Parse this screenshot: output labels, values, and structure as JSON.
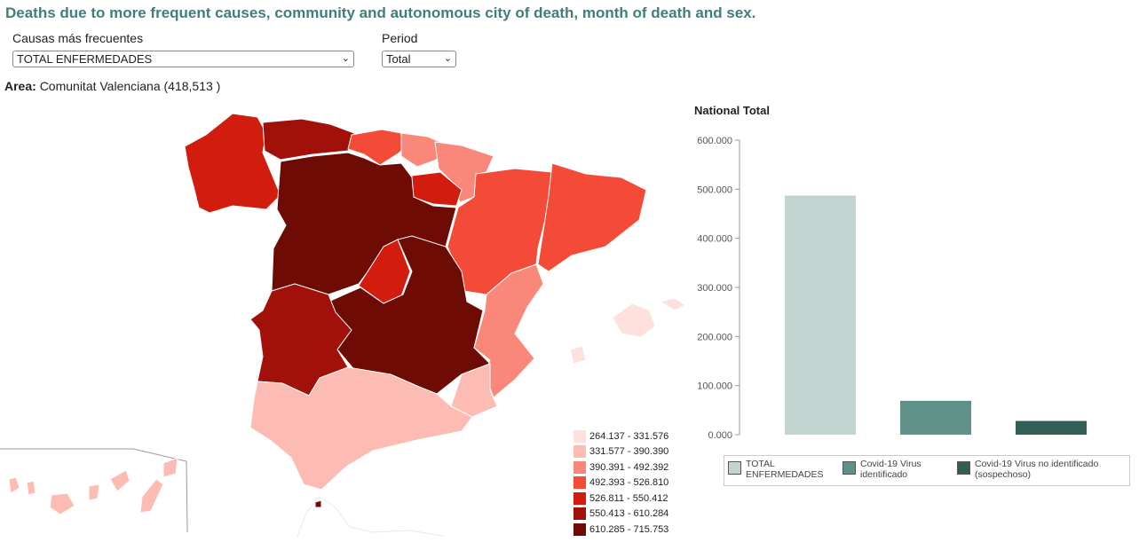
{
  "title": "Deaths due to more frequent causes, community and autonomous city of death, month of death and sex.",
  "controls": {
    "cause_label": "Causas más frecuentes",
    "cause_value": "TOTAL ENFERMEDADES",
    "period_label": "Period",
    "period_value": "Total"
  },
  "area": {
    "label": "Area:",
    "value": "Comunitat Valenciana (418,513 )"
  },
  "map_legend": [
    {
      "range": "264.137 - 331.576",
      "color": "#fee0dc"
    },
    {
      "range": "331.577 - 390.390",
      "color": "#fcbbb3"
    },
    {
      "range": "390.391 - 492.392",
      "color": "#f9877a"
    },
    {
      "range": "492.393 - 526.810",
      "color": "#f44b39"
    },
    {
      "range": "526.811 - 550.412",
      "color": "#d11c0e"
    },
    {
      "range": "550.413 - 610.284",
      "color": "#a11009"
    },
    {
      "range": "610.285 - 715.753",
      "color": "#6e0b05"
    }
  ],
  "chart_data": {
    "type": "bar",
    "title": "National Total",
    "categories": [
      "TOTAL ENFERMEDADES",
      "Covid-19 Virus identificado",
      "Covid-19 Virus no identificado (sospechoso)"
    ],
    "values": [
      487000,
      69000,
      28000
    ],
    "colors": [
      "#c1d4cf",
      "#5e9188",
      "#315e56"
    ],
    "ylim": [
      0,
      600000
    ],
    "yticks": [
      "0.000",
      "100.000",
      "200.000",
      "300.000",
      "400.000",
      "500.000",
      "600.000"
    ],
    "legend_position": "bottom",
    "grid": false
  }
}
